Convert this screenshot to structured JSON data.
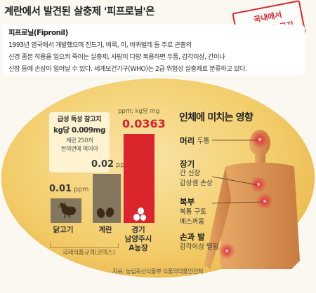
{
  "title": "계란에서 발견된 살충제 '피프로닐'은",
  "stamp": {
    "line1": "국내에서",
    "line2": "닭에 사용 금지"
  },
  "info": {
    "name": "피프로닐(Fipronil)",
    "line1": "1993년 영국에서 개발했으며 진드기, 벼룩, 이, 바퀴벌레 등 주로 곤충의",
    "line2": "신경 종분 작용을 일으켜 죽이는 살충제. 사람이 다량 복용하면 두통, 감각이상, 간이나",
    "line3": "신장 등에 손상이 일어날 수 있다. 세계보건기구(WHO)는 2급 위험성 살충제로 분류하고 있다."
  },
  "reference": {
    "line1": "급성 독성 참고치",
    "line2": "kg당 0.009mg",
    "line3": "계란 250개",
    "line4": "한꺼번에 먹어야"
  },
  "chart_data": {
    "type": "bar",
    "unit_note": "ppm: kg당 mg",
    "categories": [
      "닭고기",
      "계란",
      "경기 남양주시 A농장"
    ],
    "series": [
      {
        "values": [
          0.01,
          0.02,
          0.0363
        ],
        "labels": [
          "0.01",
          "0.02",
          "0.0363"
        ],
        "units": [
          "ppm",
          "ppm",
          "ppm"
        ]
      }
    ],
    "bracket_label": "국제식품규격(코덱스)",
    "colors": [
      "#84775f",
      "#84775f",
      "#d9252b"
    ],
    "label_colors": [
      "#3a3a3a",
      "#3a3a3a",
      "#d9252b"
    ]
  },
  "cat_labels": {
    "c1": "닭고기",
    "c2": "계란",
    "c3a": "경기",
    "c3b": "남양주시",
    "c3c": "A농장"
  },
  "body": {
    "title": "인체에 미치는 영향",
    "head": {
      "title": "머리",
      "desc": "두통"
    },
    "organs": {
      "title": "장기",
      "desc1": "간 신장",
      "desc2": "갑상샘 손상"
    },
    "abdomen": {
      "title": "복부",
      "desc1": "복통 구토",
      "desc2": "메스꺼움"
    },
    "limbs": {
      "title": "손과 발",
      "desc": "감각이상 떨림"
    }
  },
  "source": "자료: 농림축산식품부 식품의약품안전처"
}
